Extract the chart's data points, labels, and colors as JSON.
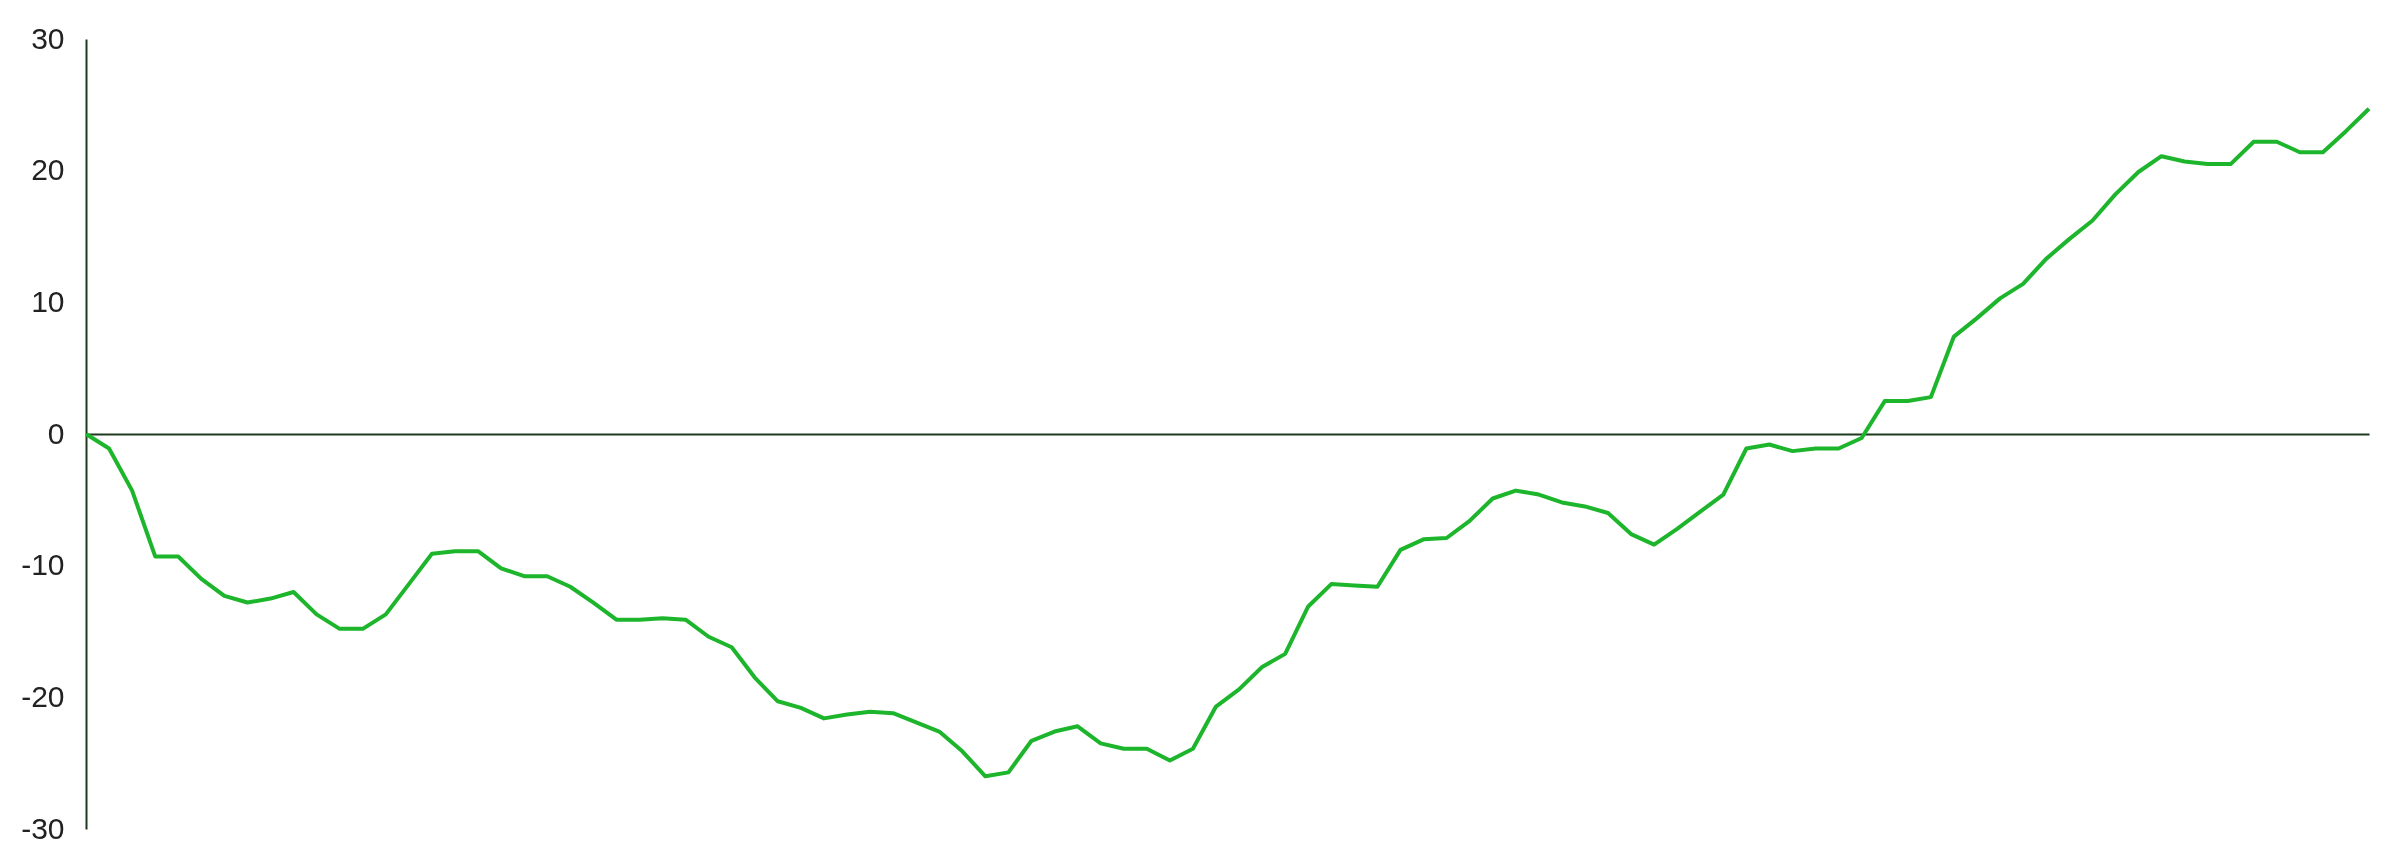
{
  "chart_data": {
    "type": "line",
    "categories": [
      null,
      null,
      null,
      null,
      null,
      null,
      null,
      null,
      null,
      null,
      null,
      null,
      null,
      null,
      null,
      null,
      null,
      null,
      null,
      null,
      null,
      null,
      null,
      null,
      null,
      null,
      null,
      null,
      null,
      null,
      null,
      null,
      null,
      null,
      null,
      null,
      null,
      null,
      null,
      null,
      null,
      null,
      null,
      null,
      null,
      null,
      null,
      null,
      null,
      null,
      null,
      null,
      null,
      null,
      null,
      null,
      null,
      null,
      null,
      null,
      null,
      null,
      null,
      null,
      null,
      null,
      null,
      null,
      null,
      null,
      null,
      null,
      null,
      null,
      null,
      null,
      null,
      null,
      null,
      null,
      null,
      null,
      null,
      null,
      null,
      null,
      null,
      null,
      null,
      null,
      null,
      null,
      null,
      null,
      null,
      null,
      null,
      null,
      null,
      null
    ],
    "series": [
      {
        "color": "#1db52b",
        "values": [
          0,
          -1.1,
          -4.3,
          -9.3,
          -9.3,
          -11,
          -12.3,
          -12.8,
          -12.5,
          -12,
          -13.7,
          -14.8,
          -14.8,
          -13.7,
          -11.4,
          -9.1,
          -8.9,
          -8.9,
          -10.2,
          -10.8,
          -10.8,
          -11.6,
          -12.8,
          -14.1,
          -14.1,
          -14,
          -14.1,
          -15.4,
          -16.2,
          -18.5,
          -20.3,
          -20.8,
          -21.6,
          -21.3,
          -21.1,
          -21.2,
          -21.9,
          -22.6,
          -24.1,
          -26,
          -25.7,
          -23.3,
          -22.6,
          -22.2,
          -23.5,
          -23.9,
          -23.9,
          -24.8,
          -23.9,
          -20.7,
          -19.4,
          -17.7,
          -16.7,
          -13.1,
          -11.4,
          -11.5,
          -11.6,
          -8.8,
          -8,
          -7.9,
          -6.6,
          -4.9,
          -4.3,
          -4.6,
          -5.2,
          -5.5,
          -6,
          -7.6,
          -8.4,
          -7.2,
          -5.9,
          -4.6,
          -1.1,
          -0.8,
          -1.3,
          -1.1,
          -1.1,
          -0.3,
          2.5,
          2.5,
          2.8,
          7.4,
          8.8,
          10.3,
          11.4,
          13.3,
          14.8,
          16.2,
          18.2,
          19.9,
          21.1,
          20.7,
          20.5,
          20.5,
          22.2,
          22.2,
          21.4,
          21.4,
          23,
          24.7
        ]
      }
    ],
    "ylim": [
      -30,
      30
    ],
    "yticks": [
      -30,
      -20,
      -10,
      0,
      10,
      20,
      30
    ],
    "tick_labels": "y",
    "marker": "none",
    "line_style": "solid"
  }
}
